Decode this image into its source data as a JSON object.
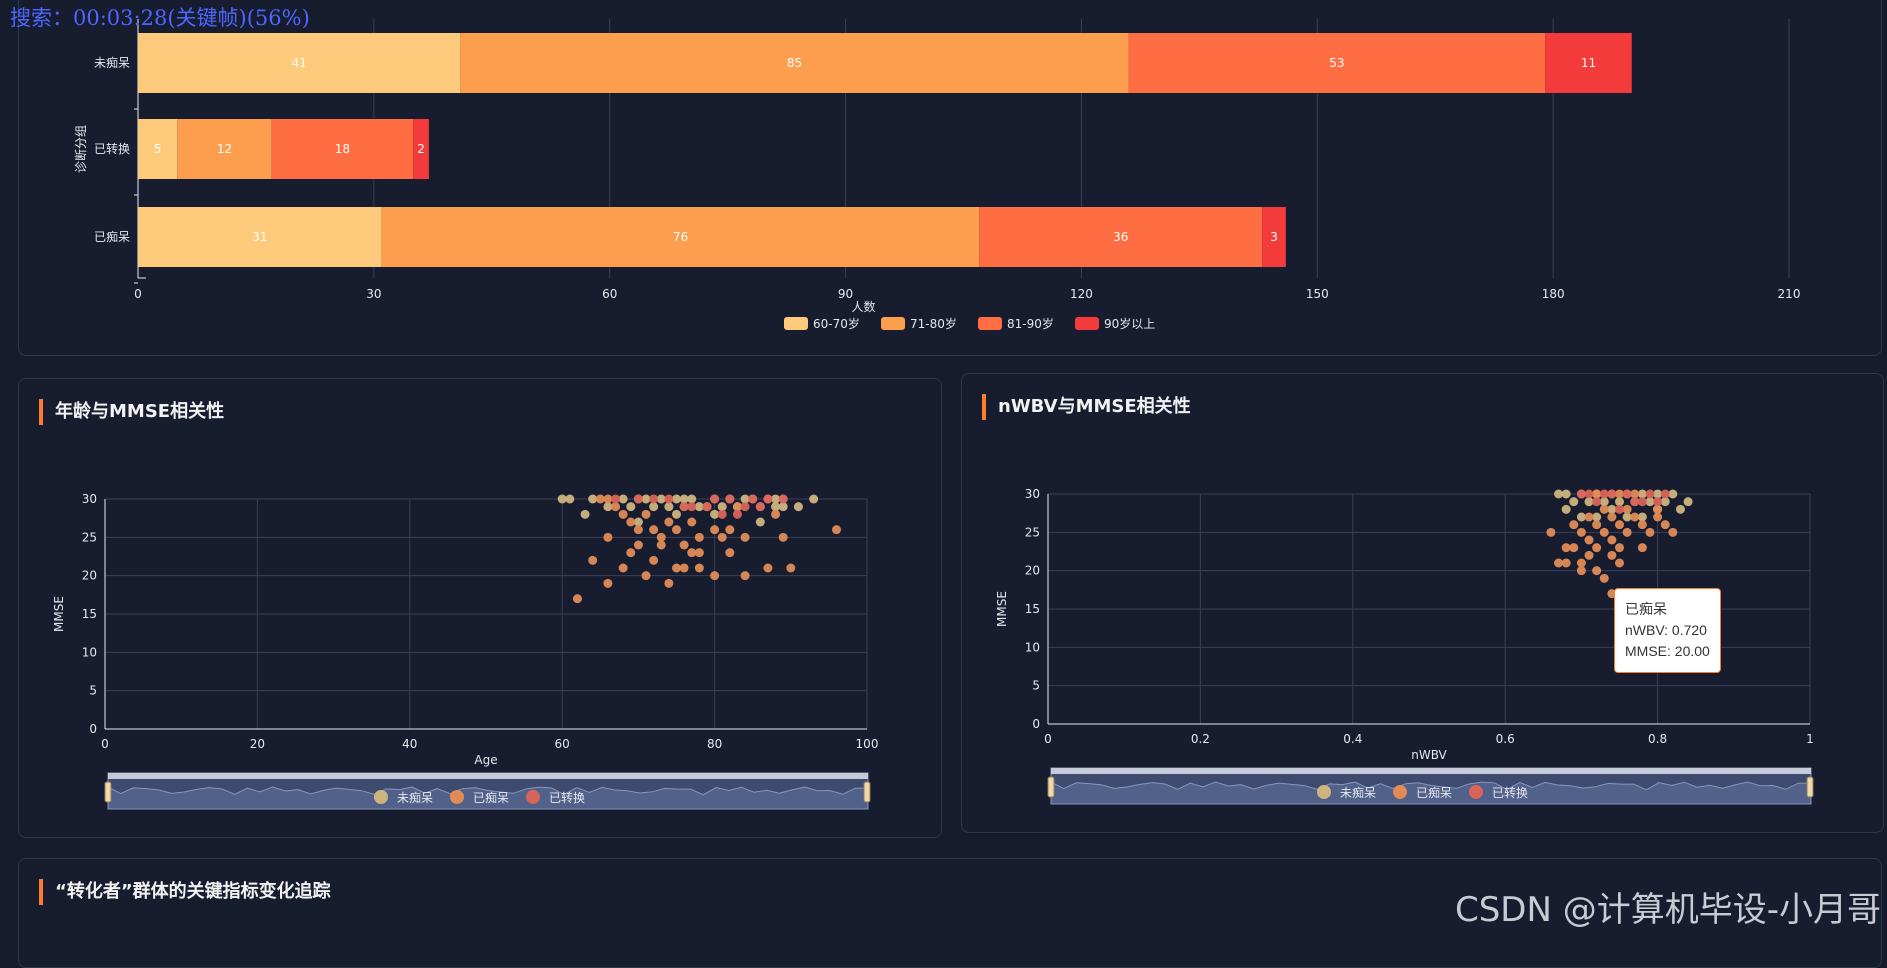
{
  "overlay_text": "搜索：00:03:28(关键帧)(56%)",
  "watermark": "CSDN @计算机毕设-小月哥",
  "panels": {
    "age_title": "年龄与MMSE相关性",
    "nwbv_title": "nWBV与MMSE相关性",
    "tracking_title": "“转化者”群体的关键指标变化追踪"
  },
  "tooltip": {
    "group": "已痴呆",
    "line1": "nWBV: 0.720",
    "line2": "MMSE: 20.00"
  },
  "colors": {
    "bar_60_70": "#fdc97a",
    "bar_71_80": "#fd9e4f",
    "bar_81_90": "#ff6e42",
    "bar_90_plus": "#f43b3b",
    "dot_nondemented": "#cdb57f",
    "dot_demented": "#e08c57",
    "dot_converted": "#d9645a"
  },
  "chart_data": [
    {
      "type": "bar",
      "orientation": "horizontal-stacked",
      "ylabel": "诊断分组",
      "xlabel": "人数",
      "categories": [
        "未痴呆",
        "已转换",
        "已痴呆"
      ],
      "series": [
        {
          "name": "60-70岁",
          "values": [
            41,
            5,
            31
          ]
        },
        {
          "name": "71-80岁",
          "values": [
            85,
            12,
            76
          ]
        },
        {
          "name": "81-90岁",
          "values": [
            53,
            18,
            36
          ]
        },
        {
          "name": "90岁以上",
          "values": [
            11,
            2,
            3
          ]
        }
      ],
      "xlim": [
        0,
        210
      ],
      "xticks": [
        "0",
        "30",
        "60",
        "90",
        "120",
        "150",
        "180",
        "210"
      ],
      "grid": true,
      "legend": "bottom"
    },
    {
      "type": "scatter",
      "xlabel": "Age",
      "ylabel": "MMSE",
      "xlim": [
        0,
        100
      ],
      "ylim": [
        0,
        30
      ],
      "xticks": [
        "0",
        "20",
        "40",
        "60",
        "80",
        "100"
      ],
      "yticks": [
        "0",
        "5",
        "10",
        "15",
        "20",
        "25",
        "30"
      ],
      "legend": "bottom",
      "grid": true,
      "series": [
        {
          "name": "未痴呆",
          "points": [
            [
              60,
              30
            ],
            [
              61,
              30
            ],
            [
              64,
              30
            ],
            [
              66,
              29
            ],
            [
              68,
              30
            ],
            [
              70,
              30
            ],
            [
              71,
              30
            ],
            [
              73,
              30
            ],
            [
              74,
              29
            ],
            [
              75,
              30
            ],
            [
              76,
              30
            ],
            [
              77,
              30
            ],
            [
              78,
              29
            ],
            [
              79,
              29
            ],
            [
              80,
              30
            ],
            [
              81,
              29
            ],
            [
              82,
              30
            ],
            [
              83,
              29
            ],
            [
              85,
              30
            ],
            [
              86,
              29
            ],
            [
              87,
              30
            ],
            [
              88,
              30
            ],
            [
              88,
              29
            ],
            [
              89,
              30
            ],
            [
              89,
              29
            ],
            [
              91,
              29
            ],
            [
              93,
              30
            ],
            [
              63,
              28
            ],
            [
              70,
              27
            ],
            [
              75,
              28
            ],
            [
              80,
              28
            ],
            [
              86,
              27
            ],
            [
              69,
              29
            ],
            [
              72,
              29
            ],
            [
              76,
              29
            ],
            [
              84,
              30
            ]
          ]
        },
        {
          "name": "已痴呆",
          "points": [
            [
              65,
              30
            ],
            [
              66,
              30
            ],
            [
              67,
              29
            ],
            [
              68,
              28
            ],
            [
              69,
              27
            ],
            [
              70,
              26
            ],
            [
              71,
              28
            ],
            [
              72,
              26
            ],
            [
              73,
              25
            ],
            [
              74,
              27
            ],
            [
              75,
              26
            ],
            [
              76,
              24
            ],
            [
              77,
              27
            ],
            [
              78,
              23
            ],
            [
              79,
              29
            ],
            [
              80,
              26
            ],
            [
              81,
              25
            ],
            [
              82,
              23
            ],
            [
              83,
              29
            ],
            [
              84,
              25
            ],
            [
              66,
              25
            ],
            [
              64,
              22
            ],
            [
              66,
              19
            ],
            [
              68,
              21
            ],
            [
              69,
              23
            ],
            [
              71,
              20
            ],
            [
              72,
              22
            ],
            [
              73,
              24
            ],
            [
              74,
              19
            ],
            [
              76,
              21
            ],
            [
              77,
              23
            ],
            [
              78,
              21
            ],
            [
              80,
              20
            ],
            [
              82,
              26
            ],
            [
              84,
              20
            ],
            [
              87,
              21
            ],
            [
              88,
              28
            ],
            [
              89,
              25
            ],
            [
              90,
              21
            ],
            [
              96,
              26
            ],
            [
              62,
              17
            ],
            [
              70,
              24
            ],
            [
              75,
              21
            ],
            [
              78,
              25
            ]
          ]
        },
        {
          "name": "已转换",
          "points": [
            [
              67,
              30
            ],
            [
              70,
              30
            ],
            [
              72,
              30
            ],
            [
              74,
              30
            ],
            [
              76,
              29
            ],
            [
              77,
              29
            ],
            [
              79,
              29
            ],
            [
              80,
              30
            ],
            [
              82,
              30
            ],
            [
              83,
              28
            ],
            [
              84,
              29
            ],
            [
              85,
              30
            ],
            [
              86,
              29
            ],
            [
              87,
              30
            ],
            [
              89,
              30
            ],
            [
              81,
              28
            ]
          ]
        }
      ]
    },
    {
      "type": "scatter",
      "xlabel": "nWBV",
      "ylabel": "MMSE",
      "xlim": [
        0,
        1
      ],
      "ylim": [
        0,
        30
      ],
      "xticks": [
        "0",
        "0.2",
        "0.4",
        "0.6",
        "0.8",
        "1"
      ],
      "yticks": [
        "0",
        "5",
        "10",
        "15",
        "20",
        "25",
        "30"
      ],
      "legend": "bottom",
      "grid": true,
      "series": [
        {
          "name": "未痴呆",
          "points": [
            [
              0.67,
              30
            ],
            [
              0.68,
              30
            ],
            [
              0.7,
              30
            ],
            [
              0.72,
              30
            ],
            [
              0.74,
              30
            ],
            [
              0.76,
              30
            ],
            [
              0.78,
              30
            ],
            [
              0.8,
              30
            ],
            [
              0.82,
              30
            ],
            [
              0.84,
              29
            ],
            [
              0.81,
              29
            ],
            [
              0.79,
              29
            ],
            [
              0.77,
              29
            ],
            [
              0.75,
              29
            ],
            [
              0.73,
              29
            ],
            [
              0.71,
              29
            ],
            [
              0.69,
              29
            ],
            [
              0.83,
              28
            ],
            [
              0.8,
              28
            ],
            [
              0.78,
              27
            ],
            [
              0.76,
              27
            ],
            [
              0.74,
              28
            ],
            [
              0.72,
              27
            ],
            [
              0.7,
              27
            ],
            [
              0.68,
              28
            ]
          ]
        },
        {
          "name": "已痴呆",
          "points": [
            [
              0.66,
              25
            ],
            [
              0.67,
              21
            ],
            [
              0.68,
              23
            ],
            [
              0.68,
              21
            ],
            [
              0.69,
              26
            ],
            [
              0.69,
              23
            ],
            [
              0.7,
              25
            ],
            [
              0.7,
              21
            ],
            [
              0.7,
              20
            ],
            [
              0.71,
              27
            ],
            [
              0.71,
              24
            ],
            [
              0.71,
              22
            ],
            [
              0.72,
              26
            ],
            [
              0.72,
              23
            ],
            [
              0.72,
              20
            ],
            [
              0.73,
              28
            ],
            [
              0.73,
              25
            ],
            [
              0.73,
              19
            ],
            [
              0.74,
              27
            ],
            [
              0.74,
              24
            ],
            [
              0.74,
              22
            ],
            [
              0.74,
              17
            ],
            [
              0.75,
              26
            ],
            [
              0.75,
              23
            ],
            [
              0.75,
              21
            ],
            [
              0.76,
              25
            ],
            [
              0.76,
              28
            ],
            [
              0.77,
              27
            ],
            [
              0.78,
              26
            ],
            [
              0.78,
              23
            ],
            [
              0.79,
              25
            ],
            [
              0.8,
              28
            ],
            [
              0.8,
              27
            ],
            [
              0.81,
              26
            ],
            [
              0.82,
              25
            ],
            [
              0.72,
              30
            ],
            [
              0.75,
              30
            ],
            [
              0.77,
              30
            ]
          ]
        },
        {
          "name": "已转换",
          "points": [
            [
              0.7,
              30
            ],
            [
              0.71,
              30
            ],
            [
              0.73,
              30
            ],
            [
              0.74,
              30
            ],
            [
              0.76,
              30
            ],
            [
              0.77,
              29
            ],
            [
              0.78,
              29
            ],
            [
              0.79,
              30
            ],
            [
              0.8,
              29
            ],
            [
              0.81,
              30
            ],
            [
              0.72,
              29
            ],
            [
              0.75,
              28
            ]
          ]
        }
      ]
    }
  ]
}
